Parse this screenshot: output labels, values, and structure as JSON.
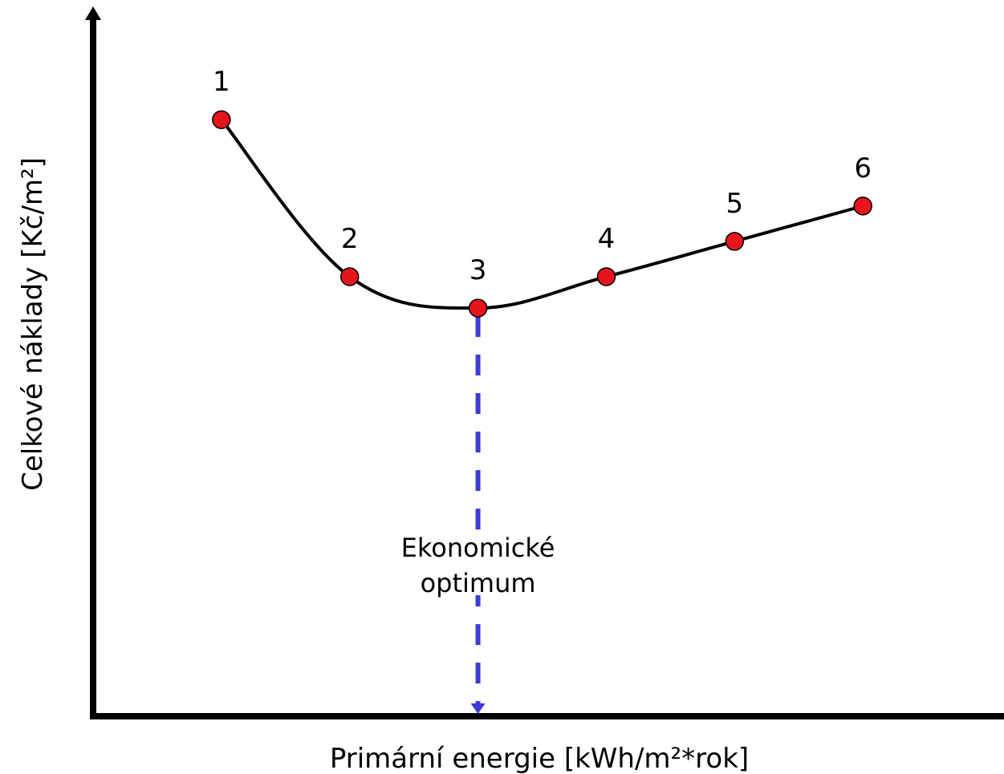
{
  "chart_data": {
    "type": "line",
    "xlabel": "Primární energie [kWh/m²*rok]",
    "ylabel": "Celkové náklady [Kč/m²]",
    "grid": false,
    "legend": "none",
    "points": [
      {
        "label": "1",
        "x": 1,
        "y": 7.6
      },
      {
        "label": "2",
        "x": 2,
        "y": 5.6
      },
      {
        "label": "3",
        "x": 3,
        "y": 5.2
      },
      {
        "label": "4",
        "x": 4,
        "y": 5.6
      },
      {
        "label": "5",
        "x": 5,
        "y": 6.05
      },
      {
        "label": "6",
        "x": 6,
        "y": 6.5
      }
    ],
    "xlim": [
      0,
      7.1
    ],
    "ylim": [
      0,
      8.9
    ],
    "annotation": {
      "line1": "Ekonomické",
      "line2": "optimum",
      "at_point": "3"
    },
    "colors": {
      "marker": "#e8141c",
      "line": "#000000",
      "optimum": "#3c3cd6"
    }
  }
}
